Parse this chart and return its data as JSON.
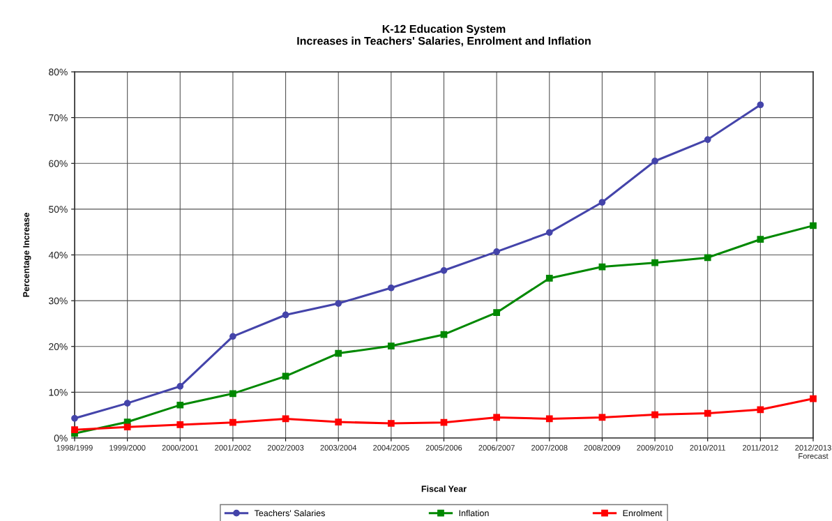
{
  "chart_data": {
    "type": "line",
    "title": "K-12 Education System\nIncreases in Teachers' Salaries, Enrolment and Inflation",
    "xlabel": "Fiscal Year",
    "ylabel": "Percentage Increase",
    "categories": [
      "1998/1999",
      "1999/2000",
      "2000/2001",
      "2001/2002",
      "2002/2003",
      "2003/2004",
      "2004/2005",
      "2005/2006",
      "2006/2007",
      "2007/2008",
      "2008/2009",
      "2009/2010",
      "2010/2011",
      "2011/2012",
      "2012/2013\nForecast"
    ],
    "series": [
      {
        "name": "Teachers' Salaries",
        "color": "#4444aa",
        "marker": "circle",
        "values": [
          4.3,
          7.6,
          11.3,
          22.2,
          26.9,
          29.4,
          32.8,
          36.6,
          40.7,
          44.9,
          51.5,
          60.5,
          65.2,
          72.8,
          null
        ]
      },
      {
        "name": "Inflation",
        "color": "#008800",
        "marker": "square",
        "values": [
          1.0,
          3.5,
          7.2,
          9.7,
          13.5,
          18.5,
          20.1,
          22.6,
          27.4,
          34.9,
          37.4,
          38.3,
          39.4,
          43.4,
          46.4
        ]
      },
      {
        "name": "Enrolment",
        "color": "#ff0000",
        "marker": "square",
        "values": [
          1.8,
          2.4,
          2.9,
          3.4,
          4.2,
          3.5,
          3.2,
          3.4,
          4.5,
          4.2,
          4.5,
          5.1,
          5.4,
          6.2,
          8.6
        ]
      }
    ],
    "ylim": [
      0,
      80
    ],
    "yticks": [
      {
        "value": 0,
        "label": "0%"
      },
      {
        "value": 10,
        "label": "10%"
      },
      {
        "value": 20,
        "label": "20%"
      },
      {
        "value": 30,
        "label": "30%"
      },
      {
        "value": 40,
        "label": "40%"
      },
      {
        "value": 50,
        "label": "50%"
      },
      {
        "value": 60,
        "label": "60%"
      },
      {
        "value": 70,
        "label": "70%"
      },
      {
        "value": 80,
        "label": "80%"
      }
    ],
    "grid": true,
    "legend": "bottom",
    "line_style": "solid"
  }
}
